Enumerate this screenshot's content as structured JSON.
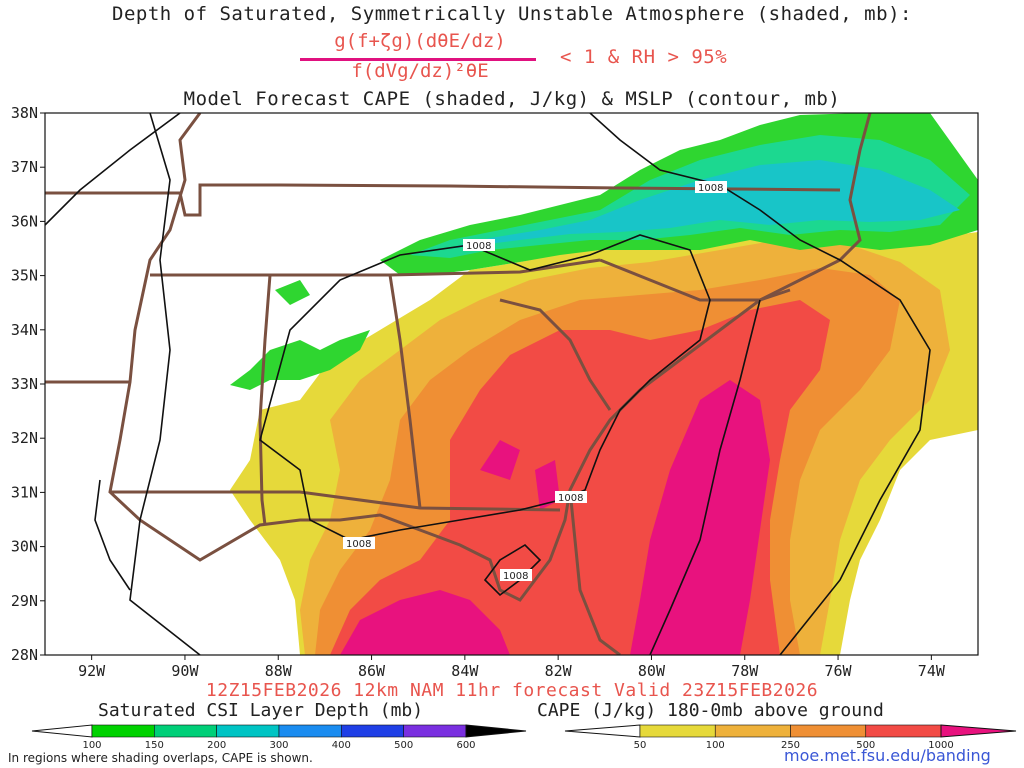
{
  "titles": {
    "line1": "Depth of Saturated, Symmetrically Unstable Atmosphere (shaded, mb):",
    "fraction_numerator": "g(f+ζg)(dθE/dz)",
    "fraction_denominator": "f(dVg/dz)²θE",
    "criterion": "< 1 & RH > 95%",
    "line3": "Model Forecast CAPE (shaded, J/kg) & MSLP (contour, mb)",
    "valid": "12Z15FEB2026 12km NAM 11hr forecast Valid 23Z15FEB2026"
  },
  "map": {
    "lat_labels": [
      "38N",
      "37N",
      "36N",
      "35N",
      "34N",
      "33N",
      "32N",
      "31N",
      "30N",
      "29N",
      "28N"
    ],
    "lon_labels": [
      "92W",
      "90W",
      "88W",
      "86W",
      "84W",
      "82W",
      "80W",
      "78W",
      "76W",
      "74W"
    ],
    "lat_range": [
      28,
      38
    ],
    "lon_range": [
      -93,
      -73
    ],
    "contour_labels": [
      "1008",
      "1008",
      "1008",
      "1008",
      "1008"
    ],
    "colors": {
      "land_border": "#7a5040",
      "isobar": "#111111",
      "cape_50": "#e6d93a",
      "cape_100": "#eeb13b",
      "cape_250": "#ef8f34",
      "cape_500": "#f24b45",
      "cape_1000": "#e8127e",
      "csi_100": "#2fd630",
      "csi_150": "#1cd890",
      "csi_200": "#18c5c8"
    }
  },
  "colorbars": {
    "csi": {
      "title": "Saturated CSI Layer Depth (mb)",
      "labels": [
        "100",
        "150",
        "200",
        "300",
        "400",
        "500",
        "600"
      ],
      "colors": [
        "#00d200",
        "#00cf78",
        "#00c4c4",
        "#1a8cf0",
        "#1f3fe6",
        "#7a2fe0",
        "#9a2bd8",
        "#000000"
      ]
    },
    "cape": {
      "title": "CAPE (J/kg) 180-0mb above ground",
      "labels": [
        "50",
        "100",
        "250",
        "500",
        "1000"
      ],
      "colors": [
        "#e6d93a",
        "#eeb13b",
        "#ef8f34",
        "#f24b45",
        "#e8127e"
      ]
    }
  },
  "footer": {
    "note": "In regions where shading overlaps, CAPE is shown.",
    "url": "moe.met.fsu.edu/banding"
  }
}
